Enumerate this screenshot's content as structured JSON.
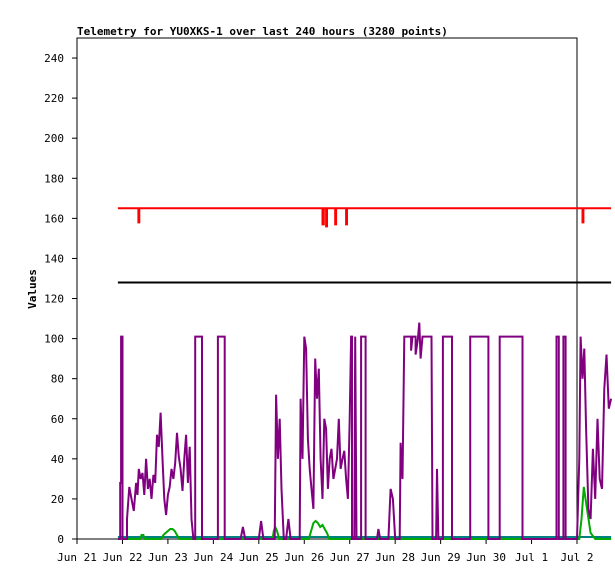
{
  "chart_data": {
    "type": "line",
    "title": "Telemetry for YU0XKS-1 over last 240 hours (3280 points)",
    "ylabel": "Values",
    "xlabel": "",
    "ylim": [
      0,
      250
    ],
    "xlim": [
      "Jun 21",
      "Jul 2"
    ],
    "y_ticks": [
      0,
      20,
      40,
      60,
      80,
      100,
      120,
      140,
      160,
      180,
      200,
      220,
      240
    ],
    "x_ticks": [
      "Jun 21",
      "Jun 22",
      "Jun 23",
      "Jun 24",
      "Jun 25",
      "Jun 26",
      "Jun 27",
      "Jun 28",
      "Jun 29",
      "Jun 30",
      "Jul 1",
      "Jul 2"
    ],
    "grid": false,
    "legend": "none",
    "series": [
      {
        "color": "#ff0000",
        "points": [
          [
            21.9,
            165
          ],
          [
            22.35,
            165
          ],
          [
            22.35,
            158
          ],
          [
            22.37,
            158
          ],
          [
            22.37,
            165
          ],
          [
            26.4,
            165
          ],
          [
            26.4,
            157
          ],
          [
            26.43,
            157
          ],
          [
            26.43,
            165
          ],
          [
            26.48,
            165
          ],
          [
            26.48,
            156
          ],
          [
            26.5,
            156
          ],
          [
            26.5,
            165
          ],
          [
            26.68,
            165
          ],
          [
            26.68,
            157
          ],
          [
            26.7,
            157
          ],
          [
            26.7,
            165
          ],
          [
            26.92,
            165
          ],
          [
            26.92,
            157
          ],
          [
            26.94,
            157
          ],
          [
            26.94,
            165
          ],
          [
            32.12,
            165
          ],
          [
            32.12,
            158
          ],
          [
            32.14,
            158
          ],
          [
            32.14,
            165
          ],
          [
            32.75,
            165
          ]
        ]
      },
      {
        "color": "#000000",
        "points": [
          [
            21.9,
            128
          ],
          [
            32.75,
            128
          ]
        ]
      },
      {
        "color": "#008080",
        "points": [
          [
            21.9,
            1
          ],
          [
            32.75,
            1
          ]
        ]
      },
      {
        "color": "#00aa00",
        "points": [
          [
            21.9,
            0
          ],
          [
            22.4,
            0
          ],
          [
            22.42,
            2
          ],
          [
            22.46,
            2
          ],
          [
            22.48,
            0
          ],
          [
            22.85,
            0
          ],
          [
            22.9,
            2
          ],
          [
            22.95,
            3
          ],
          [
            23.0,
            4
          ],
          [
            23.05,
            5
          ],
          [
            23.1,
            5
          ],
          [
            23.15,
            4
          ],
          [
            23.2,
            2
          ],
          [
            23.25,
            0
          ],
          [
            25.3,
            0
          ],
          [
            25.33,
            4
          ],
          [
            25.36,
            6
          ],
          [
            25.4,
            4
          ],
          [
            25.45,
            0
          ],
          [
            26.1,
            0
          ],
          [
            26.15,
            4
          ],
          [
            26.2,
            8
          ],
          [
            26.25,
            9
          ],
          [
            26.3,
            8
          ],
          [
            26.35,
            6
          ],
          [
            26.4,
            7
          ],
          [
            26.45,
            5
          ],
          [
            26.5,
            3
          ],
          [
            26.55,
            0
          ],
          [
            32.05,
            0
          ],
          [
            32.1,
            10
          ],
          [
            32.15,
            26
          ],
          [
            32.2,
            18
          ],
          [
            32.3,
            3
          ],
          [
            32.4,
            0
          ],
          [
            32.75,
            0
          ]
        ]
      },
      {
        "color": "#800080",
        "points": [
          [
            21.9,
            0
          ],
          [
            21.95,
            0
          ],
          [
            21.95,
            28
          ],
          [
            21.97,
            28
          ],
          [
            21.97,
            101
          ],
          [
            22.0,
            101
          ],
          [
            22.0,
            0
          ],
          [
            22.1,
            0
          ],
          [
            22.1,
            10
          ],
          [
            22.15,
            26
          ],
          [
            22.2,
            20
          ],
          [
            22.25,
            14
          ],
          [
            22.3,
            28
          ],
          [
            22.33,
            22
          ],
          [
            22.36,
            35
          ],
          [
            22.4,
            30
          ],
          [
            22.44,
            33
          ],
          [
            22.48,
            22
          ],
          [
            22.52,
            40
          ],
          [
            22.56,
            25
          ],
          [
            22.6,
            30
          ],
          [
            22.64,
            20
          ],
          [
            22.68,
            32
          ],
          [
            22.72,
            28
          ],
          [
            22.76,
            52
          ],
          [
            22.8,
            46
          ],
          [
            22.84,
            63
          ],
          [
            22.88,
            40
          ],
          [
            22.92,
            20
          ],
          [
            22.96,
            12
          ],
          [
            23.0,
            22
          ],
          [
            23.04,
            26
          ],
          [
            23.08,
            35
          ],
          [
            23.12,
            30
          ],
          [
            23.16,
            38
          ],
          [
            23.2,
            53
          ],
          [
            23.24,
            41
          ],
          [
            23.28,
            35
          ],
          [
            23.32,
            24
          ],
          [
            23.36,
            40
          ],
          [
            23.4,
            52
          ],
          [
            23.44,
            28
          ],
          [
            23.48,
            46
          ],
          [
            23.52,
            10
          ],
          [
            23.56,
            0
          ],
          [
            23.6,
            0
          ],
          [
            23.6,
            101
          ],
          [
            23.75,
            101
          ],
          [
            23.75,
            0
          ],
          [
            24.1,
            0
          ],
          [
            24.1,
            101
          ],
          [
            24.25,
            101
          ],
          [
            24.25,
            0
          ],
          [
            24.5,
            0
          ],
          [
            24.6,
            0
          ],
          [
            24.65,
            6
          ],
          [
            24.7,
            0
          ],
          [
            25.0,
            0
          ],
          [
            25.05,
            9
          ],
          [
            25.1,
            0
          ],
          [
            25.35,
            0
          ],
          [
            25.38,
            72
          ],
          [
            25.42,
            40
          ],
          [
            25.46,
            60
          ],
          [
            25.5,
            25
          ],
          [
            25.55,
            0
          ],
          [
            25.6,
            0
          ],
          [
            25.65,
            10
          ],
          [
            25.7,
            0
          ],
          [
            25.9,
            0
          ],
          [
            25.92,
            70
          ],
          [
            25.96,
            40
          ],
          [
            26.0,
            101
          ],
          [
            26.04,
            95
          ],
          [
            26.08,
            50
          ],
          [
            26.12,
            35
          ],
          [
            26.16,
            25
          ],
          [
            26.2,
            15
          ],
          [
            26.24,
            90
          ],
          [
            26.28,
            70
          ],
          [
            26.32,
            85
          ],
          [
            26.36,
            40
          ],
          [
            26.4,
            20
          ],
          [
            26.44,
            60
          ],
          [
            26.48,
            55
          ],
          [
            26.52,
            25
          ],
          [
            26.56,
            40
          ],
          [
            26.6,
            45
          ],
          [
            26.64,
            30
          ],
          [
            26.68,
            35
          ],
          [
            26.72,
            40
          ],
          [
            26.76,
            60
          ],
          [
            26.8,
            35
          ],
          [
            26.84,
            40
          ],
          [
            26.88,
            44
          ],
          [
            26.92,
            30
          ],
          [
            26.96,
            20
          ],
          [
            27.0,
            60
          ],
          [
            27.03,
            101
          ],
          [
            27.05,
            101
          ],
          [
            27.05,
            0
          ],
          [
            27.1,
            0
          ],
          [
            27.12,
            101
          ],
          [
            27.15,
            0
          ],
          [
            27.25,
            0
          ],
          [
            27.25,
            101
          ],
          [
            27.35,
            101
          ],
          [
            27.35,
            0
          ],
          [
            27.6,
            0
          ],
          [
            27.63,
            5
          ],
          [
            27.67,
            0
          ],
          [
            27.85,
            0
          ],
          [
            27.9,
            25
          ],
          [
            27.95,
            20
          ],
          [
            28.0,
            0
          ],
          [
            28.1,
            0
          ],
          [
            28.12,
            48
          ],
          [
            28.16,
            30
          ],
          [
            28.2,
            101
          ],
          [
            28.35,
            101
          ],
          [
            28.35,
            94
          ],
          [
            28.38,
            101
          ],
          [
            28.45,
            101
          ],
          [
            28.45,
            92
          ],
          [
            28.5,
            100
          ],
          [
            28.53,
            108
          ],
          [
            28.56,
            90
          ],
          [
            28.6,
            101
          ],
          [
            28.8,
            101
          ],
          [
            28.82,
            0
          ],
          [
            28.9,
            0
          ],
          [
            28.92,
            35
          ],
          [
            28.95,
            0
          ],
          [
            29.05,
            0
          ],
          [
            29.05,
            101
          ],
          [
            29.25,
            101
          ],
          [
            29.25,
            0
          ],
          [
            29.65,
            0
          ],
          [
            29.65,
            101
          ],
          [
            30.05,
            101
          ],
          [
            30.05,
            0
          ],
          [
            30.3,
            0
          ],
          [
            30.3,
            101
          ],
          [
            30.8,
            101
          ],
          [
            30.8,
            0
          ],
          [
            31.55,
            0
          ],
          [
            31.55,
            101
          ],
          [
            31.6,
            101
          ],
          [
            31.6,
            0
          ],
          [
            31.7,
            0
          ],
          [
            31.7,
            101
          ],
          [
            31.75,
            101
          ],
          [
            31.75,
            0
          ],
          [
            32.0,
            0
          ],
          [
            32.05,
            40
          ],
          [
            32.08,
            101
          ],
          [
            32.12,
            80
          ],
          [
            32.16,
            95
          ],
          [
            32.2,
            55
          ],
          [
            32.25,
            15
          ],
          [
            32.3,
            10
          ],
          [
            32.35,
            45
          ],
          [
            32.4,
            20
          ],
          [
            32.45,
            60
          ],
          [
            32.5,
            30
          ],
          [
            32.55,
            25
          ],
          [
            32.6,
            75
          ],
          [
            32.65,
            92
          ],
          [
            32.7,
            65
          ],
          [
            32.75,
            70
          ]
        ]
      }
    ]
  }
}
